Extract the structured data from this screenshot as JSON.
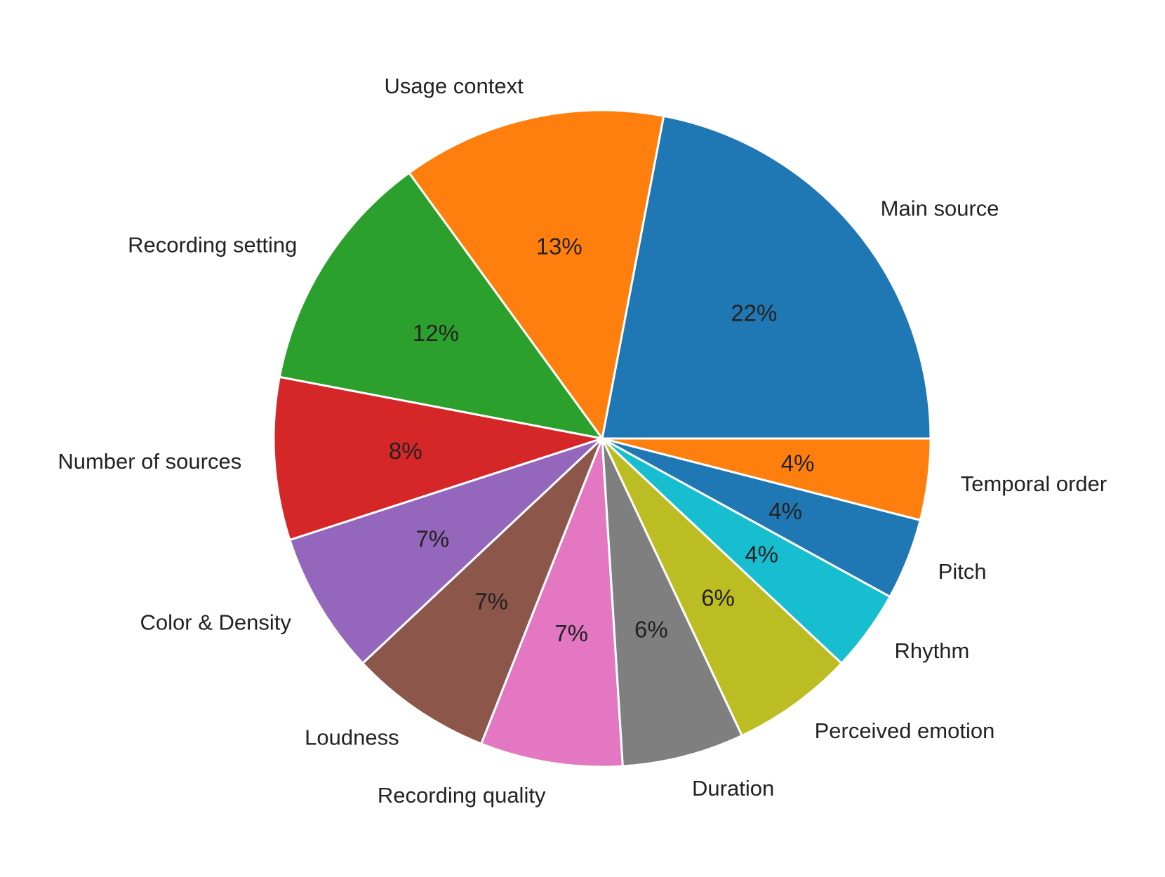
{
  "chart_data": {
    "type": "pie",
    "title": "",
    "start_angle_deg": 0,
    "direction": "counterclockwise",
    "edge_color": "#ffffff",
    "slices": [
      {
        "label": "Main source",
        "value": 22,
        "pct_text": "22%",
        "color": "#1f77b4"
      },
      {
        "label": "Usage context",
        "value": 13,
        "pct_text": "13%",
        "color": "#ff7f0e"
      },
      {
        "label": "Recording setting",
        "value": 12,
        "pct_text": "12%",
        "color": "#2ca02c"
      },
      {
        "label": "Number of sources",
        "value": 8,
        "pct_text": "8%",
        "color": "#d62728"
      },
      {
        "label": "Color & Density",
        "value": 7,
        "pct_text": "7%",
        "color": "#9467bd"
      },
      {
        "label": "Loudness",
        "value": 7,
        "pct_text": "7%",
        "color": "#8c564b"
      },
      {
        "label": "Recording quality",
        "value": 7,
        "pct_text": "7%",
        "color": "#e377c2"
      },
      {
        "label": "Duration",
        "value": 6,
        "pct_text": "6%",
        "color": "#7f7f7f"
      },
      {
        "label": "Perceived emotion",
        "value": 6,
        "pct_text": "6%",
        "color": "#bcbd22"
      },
      {
        "label": "Rhythm",
        "value": 4,
        "pct_text": "4%",
        "color": "#17becf"
      },
      {
        "label": "Pitch",
        "value": 4,
        "pct_text": "4%",
        "color": "#1f77b4"
      },
      {
        "label": "Temporal order",
        "value": 4,
        "pct_text": "4%",
        "color": "#ff7f0e"
      }
    ]
  }
}
